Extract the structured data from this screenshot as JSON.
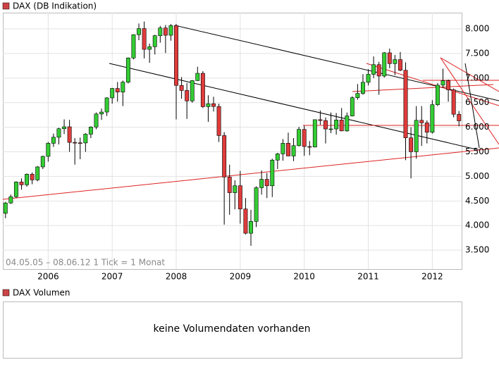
{
  "chart_data": {
    "type": "candlestick",
    "legend": "DAX (DB Indikation)",
    "range_note": "04.05.05 – 08.06.12   1 Tick = 1 Monat",
    "volume_legend": "DAX Volumen",
    "volume_message": "keine Volumendaten vorhanden",
    "up_color": "#33cc33",
    "down_color": "#e03b3b",
    "grid": true,
    "ylim": [
      3115,
      8330
    ],
    "yticks": [
      {
        "value": 3500,
        "label": "3.500"
      },
      {
        "value": 4000,
        "label": "4.000"
      },
      {
        "value": 4500,
        "label": "4.500"
      },
      {
        "value": 5000,
        "label": "5.000"
      },
      {
        "value": 5500,
        "label": "5.500"
      },
      {
        "value": 6000,
        "label": "6.000"
      },
      {
        "value": 6500,
        "label": "6.500"
      },
      {
        "value": 7000,
        "label": "7.000"
      },
      {
        "value": 7500,
        "label": "7.500"
      },
      {
        "value": 8000,
        "label": "8.000"
      }
    ],
    "categories": [
      null,
      null,
      null,
      null,
      null,
      null,
      null,
      null,
      "2006",
      null,
      null,
      null,
      null,
      null,
      null,
      null,
      null,
      null,
      null,
      null,
      "2007",
      null,
      null,
      null,
      null,
      null,
      null,
      null,
      null,
      null,
      null,
      null,
      "2008",
      null,
      null,
      null,
      null,
      null,
      null,
      null,
      null,
      null,
      null,
      null,
      "2009",
      null,
      null,
      null,
      null,
      null,
      null,
      null,
      null,
      null,
      null,
      null,
      "2010",
      null,
      null,
      null,
      null,
      null,
      null,
      null,
      null,
      null,
      null,
      null,
      "2011",
      null,
      null,
      null,
      null,
      null,
      null,
      null,
      null,
      null,
      null,
      null,
      "2012",
      null,
      null,
      null,
      null,
      null
    ],
    "open": [
      4250,
      4460,
      4586,
      4886,
      4829,
      5044,
      4929,
      5193,
      5408,
      5674,
      5797,
      5970,
      6009,
      5692,
      5683,
      5681,
      5859,
      6004,
      6269,
      6309,
      6597,
      6789,
      6715,
      6917,
      7409,
      7883,
      8007,
      7584,
      7638,
      7862,
      8019,
      7871,
      8067,
      6851,
      6748,
      6535,
      6949,
      7097,
      6418,
      6479,
      6422,
      5831,
      4988,
      4669,
      4810,
      4338,
      3844,
      4085,
      4770,
      4941,
      4809,
      5332,
      5458,
      5675,
      5415,
      5625,
      5957,
      5608,
      5598,
      6154,
      6136,
      5965,
      5966,
      6148,
      5925,
      6229,
      6601,
      6688,
      6914,
      7077,
      7273,
      7041,
      7514,
      7294,
      7376,
      7159,
      5785,
      5502,
      6141,
      6089,
      5898,
      6459,
      6856,
      6947,
      6761,
      6264
    ],
    "high": [
      4480,
      4630,
      4900,
      4960,
      5060,
      5080,
      5210,
      5420,
      5700,
      5870,
      5990,
      6160,
      6150,
      5780,
      5790,
      5880,
      6020,
      6300,
      6380,
      6610,
      6800,
      6920,
      6950,
      7420,
      7890,
      8110,
      8150,
      7700,
      7880,
      8060,
      8080,
      8100,
      8100,
      7020,
      6900,
      6960,
      7230,
      7140,
      6650,
      6620,
      6480,
      5900,
      5240,
      4920,
      5110,
      4560,
      4320,
      4800,
      5120,
      5070,
      5360,
      5480,
      5760,
      5890,
      5780,
      6010,
      6030,
      5720,
      6160,
      6340,
      6200,
      6300,
      6290,
      6390,
      6300,
      6630,
      6880,
      7080,
      7180,
      7440,
      7330,
      7530,
      7600,
      7470,
      7530,
      7320,
      6000,
      6430,
      6430,
      6140,
      6550,
      6900,
      7190,
      6970,
      6790,
      6330
    ],
    "low": [
      4150,
      4440,
      4560,
      4730,
      4790,
      4840,
      4900,
      5150,
      5300,
      5600,
      5650,
      5860,
      5500,
      5240,
      5350,
      5500,
      5780,
      5960,
      6150,
      6230,
      6480,
      6520,
      6430,
      6890,
      7380,
      7770,
      7400,
      7310,
      7480,
      7720,
      7510,
      7760,
      6160,
      6580,
      6170,
      6500,
      6940,
      6390,
      6110,
      6320,
      5700,
      4020,
      4220,
      4330,
      4040,
      3820,
      3590,
      3970,
      4630,
      4560,
      4580,
      5150,
      5320,
      5430,
      5310,
      5610,
      5420,
      5430,
      5590,
      6050,
      5670,
      5880,
      5850,
      5920,
      5910,
      6220,
      6560,
      6660,
      6850,
      7000,
      6660,
      7010,
      7200,
      7060,
      7140,
      5330,
      4960,
      5360,
      5620,
      5670,
      5870,
      6430,
      6800,
      6520,
      6200,
      6020
    ],
    "close": [
      4460,
      4586,
      4886,
      4829,
      5044,
      4929,
      5193,
      5408,
      5674,
      5797,
      5970,
      6009,
      5692,
      5683,
      5681,
      5859,
      6004,
      6269,
      6309,
      6597,
      6789,
      6715,
      6917,
      7409,
      7883,
      8007,
      7584,
      7638,
      7862,
      8019,
      7871,
      8067,
      6851,
      6748,
      6535,
      6949,
      7097,
      6418,
      6479,
      6422,
      5831,
      4988,
      4669,
      4810,
      4338,
      3844,
      4085,
      4770,
      4941,
      4809,
      5332,
      5458,
      5675,
      5415,
      5625,
      5957,
      5608,
      5598,
      6154,
      6136,
      5965,
      5966,
      6148,
      5925,
      6229,
      6601,
      6688,
      6914,
      7077,
      7273,
      7041,
      7514,
      7294,
      7376,
      7159,
      5785,
      5502,
      6141,
      6089,
      5898,
      6459,
      6856,
      6947,
      6761,
      6264,
      6130
    ]
  }
}
